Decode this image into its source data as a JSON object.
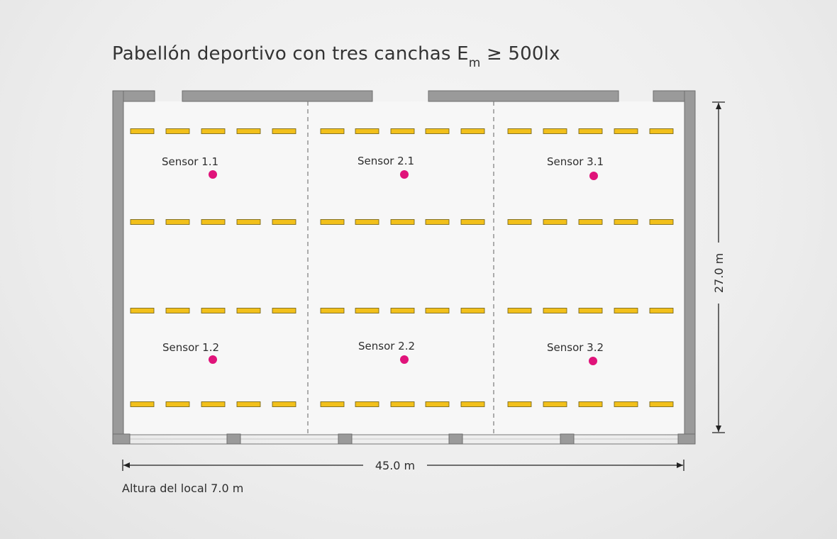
{
  "diagram": {
    "title": {
      "main": "Pabellón deportivo con tres canchas E",
      "subscript": "m",
      "suffix": " ≥ 500lx"
    },
    "width_label": "45.0 m",
    "depth_label": "27.0 m",
    "height_note": "Altura del local 7.0 m",
    "sensors": [
      {
        "label": "Sensor 1.1"
      },
      {
        "label": "Sensor 2.1"
      },
      {
        "label": "Sensor 3.1"
      },
      {
        "label": "Sensor 1.2"
      },
      {
        "label": "Sensor 2.2"
      },
      {
        "label": "Sensor 3.2"
      }
    ],
    "courts": 3,
    "luminaire_rows": 4,
    "luminaires_per_row_per_court": 5,
    "colors": {
      "wall": "#9a9a9a",
      "luminaire": "#f2c01b",
      "luminaire_outline": "#6b5a10",
      "sensor": "#e0137a",
      "floor": "#f6f6f6",
      "divider": "#777777"
    }
  }
}
